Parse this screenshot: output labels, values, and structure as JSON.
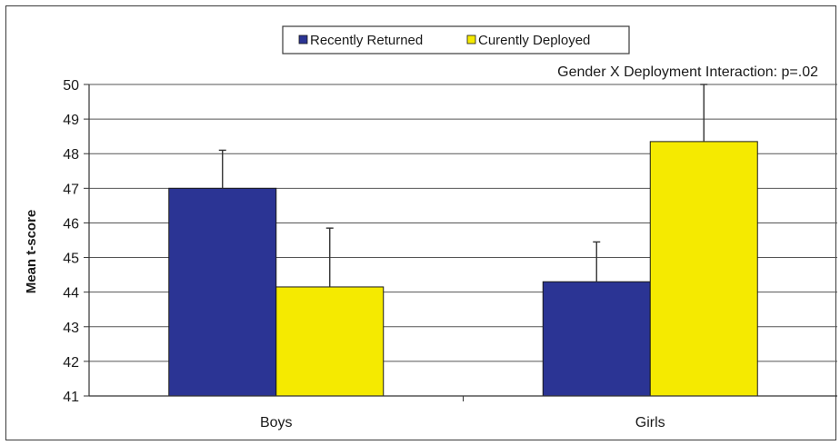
{
  "chart_data": {
    "type": "bar",
    "title": "",
    "xlabel": "",
    "ylabel": "Mean t-score",
    "ylim": [
      41,
      50
    ],
    "yticks": [
      41,
      42,
      43,
      44,
      45,
      46,
      47,
      48,
      49,
      50
    ],
    "categories": [
      "Boys",
      "Girls"
    ],
    "series": [
      {
        "name": "Recently Returned",
        "color": "#2b3494",
        "values": [
          47.0,
          44.3
        ],
        "error_upper": [
          1.1,
          1.15
        ]
      },
      {
        "name": "Curently Deployed",
        "color": "#f5ea00",
        "values": [
          44.15,
          48.35
        ],
        "error_upper": [
          1.7,
          1.7
        ]
      }
    ],
    "annotation": "Gender X Deployment Interaction: p=.02",
    "grid": true,
    "legend_position": "top-center"
  }
}
